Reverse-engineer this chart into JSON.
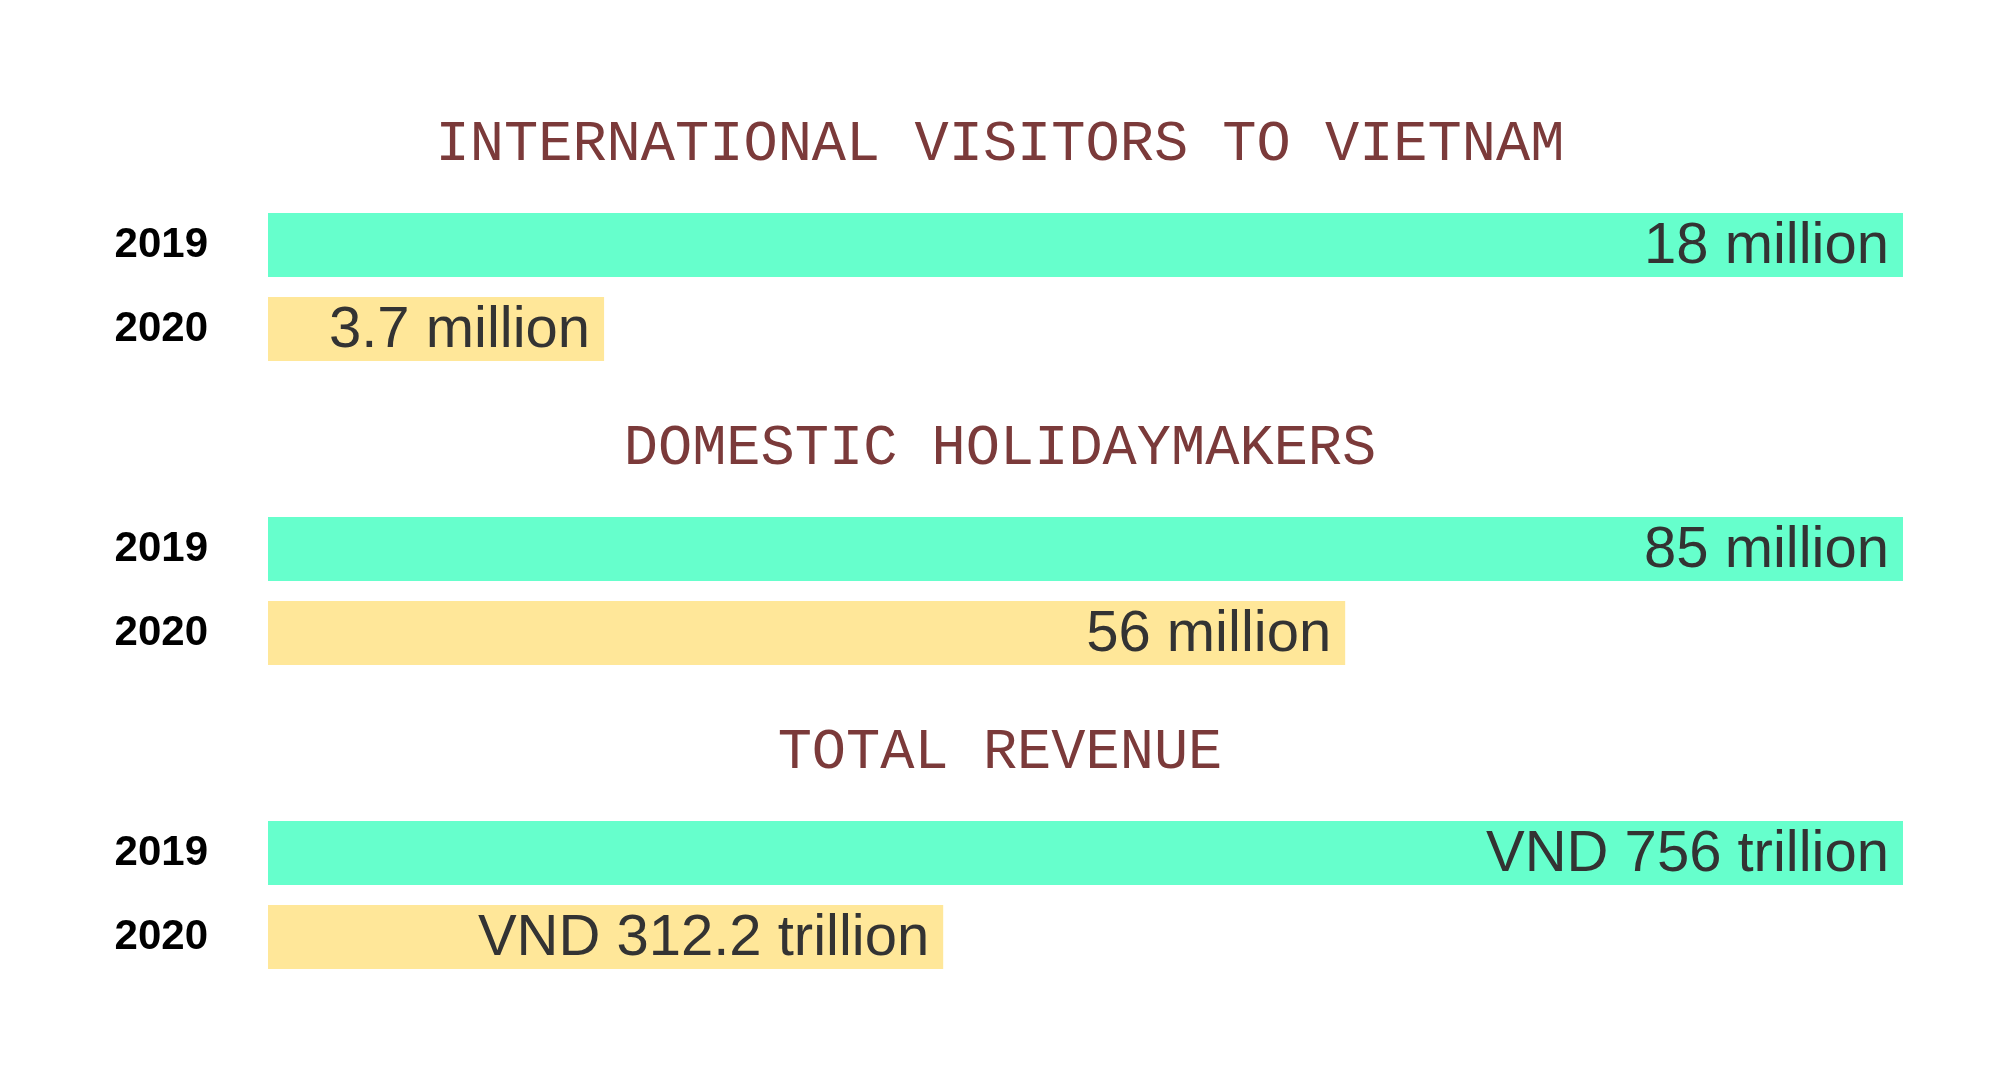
{
  "chart_data": [
    {
      "type": "bar",
      "orientation": "horizontal",
      "title": "INTERNATIONAL VISITORS TO VIETNAM",
      "categories": [
        "2019",
        "2020"
      ],
      "values": [
        18,
        3.7
      ],
      "colors": [
        "#66ffcc",
        "#ffe799"
      ],
      "value_labels": [
        "18 million",
        "3.7 million"
      ],
      "tick_labels": "y"
    },
    {
      "type": "bar",
      "orientation": "horizontal",
      "title": "DOMESTIC HOLIDAYMAKERS",
      "categories": [
        "2019",
        "2020"
      ],
      "values": [
        85,
        56
      ],
      "colors": [
        "#66ffcc",
        "#ffe799"
      ],
      "value_labels": [
        "85 million",
        "56 million"
      ],
      "tick_labels": "y"
    },
    {
      "type": "bar",
      "orientation": "horizontal",
      "title": "TOTAL REVENUE",
      "categories": [
        "2019",
        "2020"
      ],
      "values": [
        756,
        312.2
      ],
      "colors": [
        "#66ffcc",
        "#ffe799"
      ],
      "value_labels": [
        "VND 756 trillion",
        "VND 312.2 trillion"
      ],
      "tick_labels": "y"
    }
  ]
}
